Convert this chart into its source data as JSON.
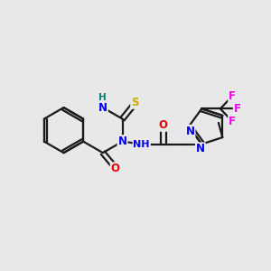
{
  "bg_color": "#e8e8e8",
  "bond_color": "#1a1a1a",
  "bond_width": 1.6,
  "atom_colors": {
    "N": "#0000ee",
    "O": "#ee0000",
    "S": "#ccaa00",
    "F": "#ee00ee",
    "H_label": "#008080",
    "C": "#1a1a1a"
  },
  "font_size_atom": 8.5,
  "font_size_h": 7.5
}
